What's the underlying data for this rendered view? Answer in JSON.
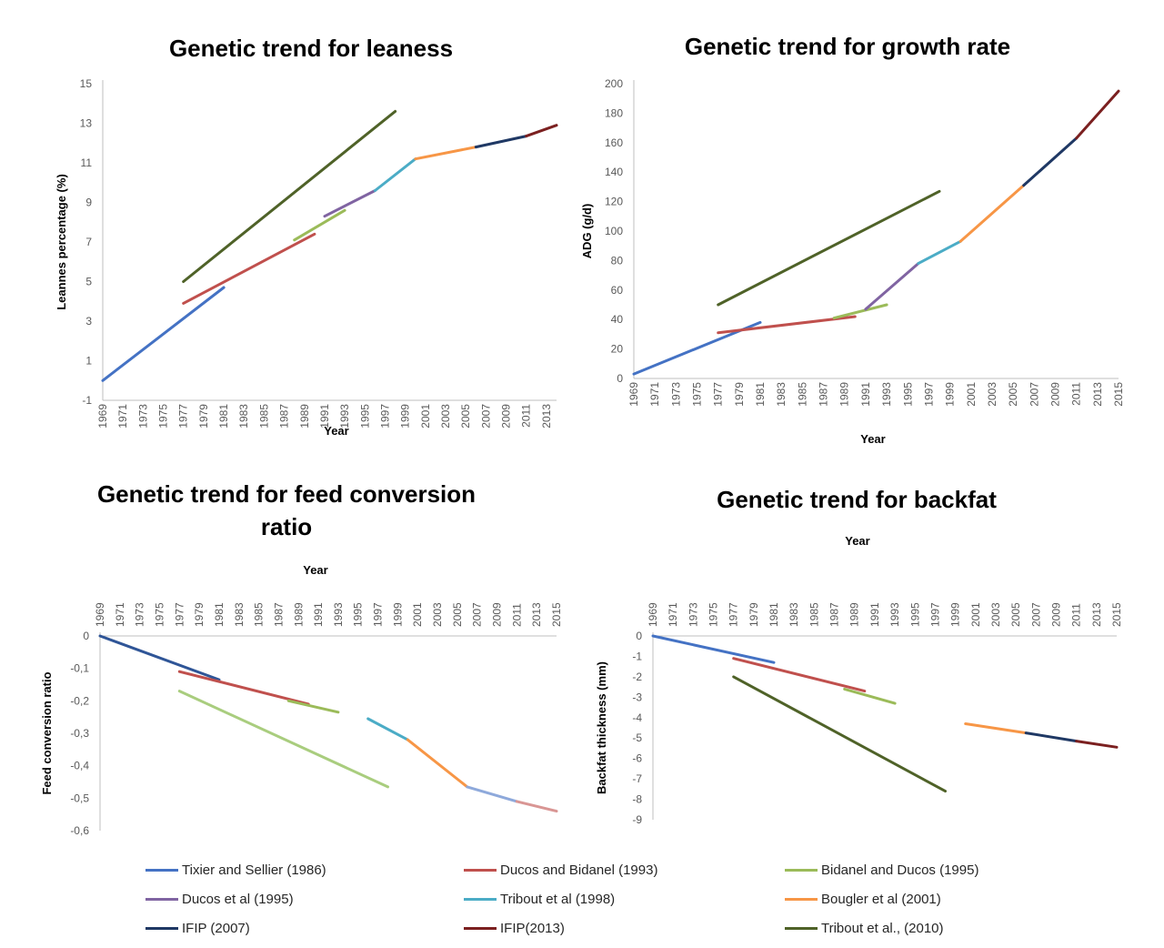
{
  "chart_data": [
    {
      "id": "leaness",
      "type": "line",
      "title": "Genetic trend for leaness",
      "xlabel": "Year",
      "ylabel": "Leannes percentage (%)",
      "ylim": [
        -1,
        15
      ],
      "yticks": [
        "-1",
        "1",
        "3",
        "5",
        "7",
        "9",
        "11",
        "13",
        "15"
      ],
      "xlim": [
        1969,
        2014
      ],
      "xticks": [
        "1969",
        "1971",
        "1973",
        "1975",
        "1977",
        "1979",
        "1981",
        "1983",
        "1985",
        "1987",
        "1989",
        "1991",
        "1993",
        "1995",
        "1997",
        "1999",
        "2001",
        "2003",
        "2005",
        "2007",
        "2009",
        "2011",
        "2013"
      ],
      "series": [
        {
          "name": "Tixier and Sellier (1986)",
          "x": [
            1969,
            1981
          ],
          "y": [
            0,
            4.7
          ]
        },
        {
          "name": "Tribout et al., (2010)",
          "x": [
            1977,
            1998
          ],
          "y": [
            5.0,
            13.6
          ]
        },
        {
          "name": "Ducos and Bidanel (1993)",
          "x": [
            1977,
            1990
          ],
          "y": [
            3.9,
            7.4
          ]
        },
        {
          "name": "Bidanel and Ducos (1995)",
          "x": [
            1988,
            1993
          ],
          "y": [
            7.1,
            8.6
          ]
        },
        {
          "name": "Ducos et al (1995)",
          "x": [
            1991,
            1996
          ],
          "y": [
            8.3,
            9.6
          ]
        },
        {
          "name": "Tribout et al (1998)",
          "x": [
            1996,
            2000
          ],
          "y": [
            9.6,
            11.2
          ]
        },
        {
          "name": "Bougler et al (2001)",
          "x": [
            2000,
            2006
          ],
          "y": [
            11.2,
            11.8
          ]
        },
        {
          "name": "IFIP (2007)",
          "x": [
            2006,
            2011
          ],
          "y": [
            11.8,
            12.35
          ]
        },
        {
          "name": "IFIP(2013)",
          "x": [
            2011,
            2014
          ],
          "y": [
            12.35,
            12.9
          ]
        }
      ]
    },
    {
      "id": "growth",
      "type": "line",
      "title": "Genetic trend for growth rate",
      "xlabel": "Year",
      "ylabel": "ADG (g/d)",
      "ylim": [
        0,
        200
      ],
      "yticks": [
        "0",
        "20",
        "40",
        "60",
        "80",
        "100",
        "120",
        "140",
        "160",
        "180",
        "200"
      ],
      "xlim": [
        1969,
        2015
      ],
      "xticks": [
        "1969",
        "1971",
        "1973",
        "1975",
        "1977",
        "1979",
        "1981",
        "1983",
        "1985",
        "1987",
        "1989",
        "1991",
        "1993",
        "1995",
        "1997",
        "1999",
        "2001",
        "2003",
        "2005",
        "2007",
        "2009",
        "2011",
        "2013",
        "2015"
      ],
      "series": [
        {
          "name": "Tixier and Sellier (1986)",
          "x": [
            1969,
            1981
          ],
          "y": [
            3,
            38
          ]
        },
        {
          "name": "Ducos and Bidanel (1993)",
          "x": [
            1977,
            1990
          ],
          "y": [
            31,
            42
          ]
        },
        {
          "name": "Bidanel and Ducos (1995)",
          "x": [
            1988,
            1993
          ],
          "y": [
            41,
            50
          ]
        },
        {
          "name": "Tribout et al., (2010)",
          "x": [
            1977,
            1998
          ],
          "y": [
            50,
            127
          ]
        },
        {
          "name": "Ducos et al (1995)",
          "x": [
            1991,
            1996
          ],
          "y": [
            47,
            78
          ]
        },
        {
          "name": "Tribout et al (1998)",
          "x": [
            1996,
            2000
          ],
          "y": [
            78,
            93
          ]
        },
        {
          "name": "Bougler et al (2001)",
          "x": [
            2000,
            2006
          ],
          "y": [
            93,
            131
          ]
        },
        {
          "name": "IFIP (2007)",
          "x": [
            2006,
            2011
          ],
          "y": [
            131,
            163
          ]
        },
        {
          "name": "IFIP(2013)",
          "x": [
            2011,
            2015
          ],
          "y": [
            163,
            195
          ]
        }
      ]
    },
    {
      "id": "fcr",
      "type": "line",
      "title": "Genetic trend for feed conversion ratio",
      "title_lines": [
        "Genetic trend for feed conversion",
        "ratio"
      ],
      "xlabel": "Year",
      "ylabel": "Feed conversion ratio",
      "ylim": [
        -0.6,
        0
      ],
      "yticks": [
        "0",
        "-0,1",
        "-0,2",
        "-0,3",
        "-0,4",
        "-0,5",
        "-0,6"
      ],
      "xlim": [
        1969,
        2015
      ],
      "xticks": [
        "1969",
        "1971",
        "1973",
        "1975",
        "1977",
        "1979",
        "1981",
        "1983",
        "1985",
        "1987",
        "1989",
        "1991",
        "1993",
        "1995",
        "1997",
        "1999",
        "2001",
        "2003",
        "2005",
        "2007",
        "2009",
        "2011",
        "2013",
        "2015"
      ],
      "series": [
        {
          "name": "Tixier and Sellier (1986)",
          "x": [
            1969,
            1981
          ],
          "y": [
            0,
            -0.135
          ]
        },
        {
          "name": "Ducos and Bidanel (1993)",
          "x": [
            1977,
            1990
          ],
          "y": [
            -0.11,
            -0.21
          ]
        },
        {
          "name": "Bidanel and Ducos (1995)",
          "x": [
            1988,
            1993
          ],
          "y": [
            -0.2,
            -0.235
          ]
        },
        {
          "name": "Tribout et al., (2010)",
          "x": [
            1977,
            1998
          ],
          "y": [
            -0.17,
            -0.465
          ]
        },
        {
          "name": "Tribout et al (1998)",
          "x": [
            1996,
            2000
          ],
          "y": [
            -0.255,
            -0.32
          ]
        },
        {
          "name": "Bougler et al (2001)",
          "x": [
            2000,
            2006
          ],
          "y": [
            -0.32,
            -0.465
          ]
        },
        {
          "name": "IFIP (2007)",
          "x": [
            2006,
            2011
          ],
          "y": [
            -0.465,
            -0.51
          ]
        },
        {
          "name": "IFIP(2013)",
          "x": [
            2011,
            2015
          ],
          "y": [
            -0.51,
            -0.54
          ]
        }
      ]
    },
    {
      "id": "backfat",
      "type": "line",
      "title": "Genetic trend for backfat",
      "xlabel": "Year",
      "ylabel": "Backfat thickness (mm)",
      "ylim": [
        -9,
        0
      ],
      "yticks": [
        "0",
        "-1",
        "-2",
        "-3",
        "-4",
        "-5",
        "-6",
        "-7",
        "-8",
        "-9"
      ],
      "xlim": [
        1969,
        2015
      ],
      "xticks": [
        "1969",
        "1971",
        "1973",
        "1975",
        "1977",
        "1979",
        "1981",
        "1983",
        "1985",
        "1987",
        "1989",
        "1991",
        "1993",
        "1995",
        "1997",
        "1999",
        "2001",
        "2003",
        "2005",
        "2007",
        "2009",
        "2011",
        "2013",
        "2015"
      ],
      "series": [
        {
          "name": "Tixier and Sellier (1986)",
          "x": [
            1969,
            1981
          ],
          "y": [
            0,
            -1.3
          ]
        },
        {
          "name": "Ducos and Bidanel (1993)",
          "x": [
            1977,
            1990
          ],
          "y": [
            -1.1,
            -2.7
          ]
        },
        {
          "name": "Bidanel and Ducos (1995)",
          "x": [
            1988,
            1993
          ],
          "y": [
            -2.6,
            -3.3
          ]
        },
        {
          "name": "Tribout et al., (2010)",
          "x": [
            1977,
            1998
          ],
          "y": [
            -2.0,
            -7.6
          ]
        },
        {
          "name": "Bougler et al (2001)",
          "x": [
            2000,
            2006
          ],
          "y": [
            -4.3,
            -4.75
          ]
        },
        {
          "name": "IFIP (2007)",
          "x": [
            2006,
            2011
          ],
          "y": [
            -4.75,
            -5.15
          ]
        },
        {
          "name": "IFIP(2013)",
          "x": [
            2011,
            2015
          ],
          "y": [
            -5.15,
            -5.45
          ]
        }
      ]
    }
  ],
  "legend": {
    "items": [
      {
        "name": "Tixier and Sellier (1986)",
        "color": "#4472c4"
      },
      {
        "name": "Ducos and Bidanel (1993)",
        "color": "#c0504d"
      },
      {
        "name": "Bidanel and Ducos (1995)",
        "color": "#9bbb59"
      },
      {
        "name": "Ducos et al (1995)",
        "color": "#8064a2"
      },
      {
        "name": "Tribout et al (1998)",
        "color": "#4bacc6"
      },
      {
        "name": "Bougler et al (2001)",
        "color": "#f79646"
      },
      {
        "name": "IFIP (2007)",
        "color": "#1f3864"
      },
      {
        "name": "IFIP(2013)",
        "color": "#7b2020"
      },
      {
        "name": "Tribout et al., (2010)",
        "color": "#4f6228"
      }
    ]
  }
}
